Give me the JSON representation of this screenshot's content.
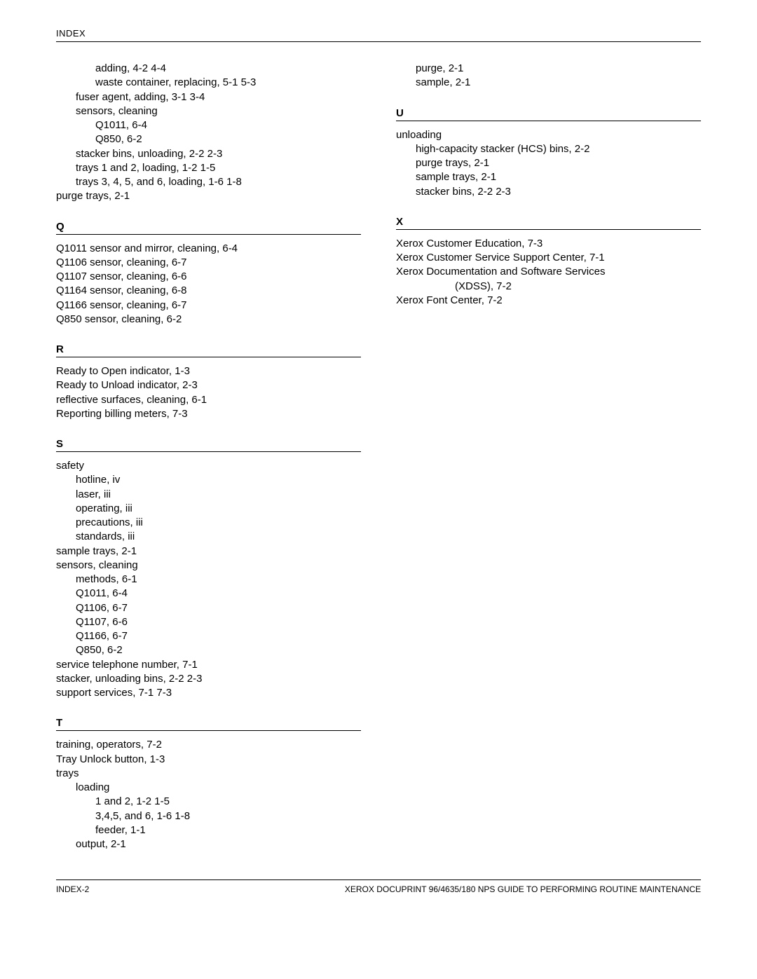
{
  "header": "INDEX",
  "footer_left": "INDEX-2",
  "footer_right": "XEROX DOCUPRINT 96/4635/180 NPS GUIDE TO PERFORMING ROUTINE MAINTENANCE",
  "left_col": [
    {
      "type": "entry",
      "indent": 2,
      "text": "adding, 4-2  4-4"
    },
    {
      "type": "entry",
      "indent": 2,
      "text": "waste container, replacing, 5-1  5-3"
    },
    {
      "type": "entry",
      "indent": 1,
      "text": "fuser agent, adding, 3-1  3-4"
    },
    {
      "type": "entry",
      "indent": 1,
      "text": "sensors, cleaning"
    },
    {
      "type": "entry",
      "indent": 2,
      "text": "Q1011, 6-4"
    },
    {
      "type": "entry",
      "indent": 2,
      "text": "Q850, 6-2"
    },
    {
      "type": "entry",
      "indent": 1,
      "text": "stacker bins, unloading, 2-2  2-3"
    },
    {
      "type": "entry",
      "indent": 1,
      "text": "trays 1 and 2, loading, 1-2  1-5"
    },
    {
      "type": "entry",
      "indent": 1,
      "text": "trays 3, 4, 5, and 6, loading, 1-6  1-8"
    },
    {
      "type": "entry",
      "indent": 0,
      "text": "purge trays, 2-1"
    },
    {
      "type": "letter",
      "text": "Q"
    },
    {
      "type": "entry",
      "indent": 0,
      "text": "Q1011 sensor and mirror, cleaning, 6-4"
    },
    {
      "type": "entry",
      "indent": 0,
      "text": "Q1106 sensor, cleaning, 6-7"
    },
    {
      "type": "entry",
      "indent": 0,
      "text": "Q1107 sensor, cleaning, 6-6"
    },
    {
      "type": "entry",
      "indent": 0,
      "text": "Q1164 sensor, cleaning, 6-8"
    },
    {
      "type": "entry",
      "indent": 0,
      "text": "Q1166 sensor, cleaning, 6-7"
    },
    {
      "type": "entry",
      "indent": 0,
      "text": "Q850 sensor, cleaning, 6-2"
    },
    {
      "type": "letter",
      "text": "R"
    },
    {
      "type": "entry",
      "indent": 0,
      "text": "Ready to Open indicator, 1-3"
    },
    {
      "type": "entry",
      "indent": 0,
      "text": "Ready to Unload indicator, 2-3"
    },
    {
      "type": "entry",
      "indent": 0,
      "text": "reflective surfaces, cleaning, 6-1"
    },
    {
      "type": "entry",
      "indent": 0,
      "text": "Reporting billing meters, 7-3"
    },
    {
      "type": "letter",
      "text": "S"
    },
    {
      "type": "entry",
      "indent": 0,
      "text": "safety"
    },
    {
      "type": "entry",
      "indent": 1,
      "text": "hotline, iv"
    },
    {
      "type": "entry",
      "indent": 1,
      "text": "laser, iii"
    },
    {
      "type": "entry",
      "indent": 1,
      "text": "operating, iii"
    },
    {
      "type": "entry",
      "indent": 1,
      "text": "precautions, iii"
    },
    {
      "type": "entry",
      "indent": 1,
      "text": "standards, iii"
    },
    {
      "type": "entry",
      "indent": 0,
      "text": "sample trays, 2-1"
    },
    {
      "type": "entry",
      "indent": 0,
      "text": "sensors, cleaning"
    },
    {
      "type": "entry",
      "indent": 1,
      "text": "methods, 6-1"
    },
    {
      "type": "entry",
      "indent": 1,
      "text": "Q1011, 6-4"
    },
    {
      "type": "entry",
      "indent": 1,
      "text": "Q1106, 6-7"
    },
    {
      "type": "entry",
      "indent": 1,
      "text": "Q1107, 6-6"
    },
    {
      "type": "entry",
      "indent": 1,
      "text": "Q1166, 6-7"
    },
    {
      "type": "entry",
      "indent": 1,
      "text": "Q850, 6-2"
    },
    {
      "type": "entry",
      "indent": 0,
      "text": "service telephone number, 7-1"
    },
    {
      "type": "entry",
      "indent": 0,
      "text": "stacker, unloading bins, 2-2  2-3"
    },
    {
      "type": "entry",
      "indent": 0,
      "text": "support services, 7-1  7-3"
    },
    {
      "type": "letter",
      "text": "T"
    },
    {
      "type": "entry",
      "indent": 0,
      "text": "training, operators, 7-2"
    },
    {
      "type": "entry",
      "indent": 0,
      "text": "Tray Unlock button, 1-3"
    },
    {
      "type": "entry",
      "indent": 0,
      "text": "trays"
    },
    {
      "type": "entry",
      "indent": 1,
      "text": "loading"
    },
    {
      "type": "entry",
      "indent": 2,
      "text": "1 and 2, 1-2  1-5"
    },
    {
      "type": "entry",
      "indent": 2,
      "text": "3,4,5, and 6, 1-6  1-8"
    },
    {
      "type": "entry",
      "indent": 2,
      "text": "feeder, 1-1"
    },
    {
      "type": "entry",
      "indent": 1,
      "text": "output, 2-1"
    }
  ],
  "right_col": [
    {
      "type": "entry",
      "indent": 1,
      "text": "purge, 2-1"
    },
    {
      "type": "entry",
      "indent": 1,
      "text": "sample, 2-1"
    },
    {
      "type": "letter",
      "text": "U"
    },
    {
      "type": "entry",
      "indent": 0,
      "text": "unloading"
    },
    {
      "type": "entry",
      "indent": 1,
      "text": "high-capacity stacker (HCS) bins, 2-2"
    },
    {
      "type": "entry",
      "indent": 1,
      "text": "purge trays, 2-1"
    },
    {
      "type": "entry",
      "indent": 1,
      "text": "sample trays, 2-1"
    },
    {
      "type": "entry",
      "indent": 1,
      "text": "stacker bins, 2-2  2-3"
    },
    {
      "type": "letter",
      "text": "X"
    },
    {
      "type": "entry",
      "indent": 0,
      "text": "Xerox Customer Education, 7-3"
    },
    {
      "type": "entry",
      "indent": 0,
      "text": "Xerox Customer Service Support Center, 7-1"
    },
    {
      "type": "entry",
      "indent": 0,
      "text": "Xerox Documentation and Software Services"
    },
    {
      "type": "entry",
      "indent": 3,
      "text": "(XDSS), 7-2"
    },
    {
      "type": "entry",
      "indent": 0,
      "text": "Xerox Font Center, 7-2"
    }
  ]
}
